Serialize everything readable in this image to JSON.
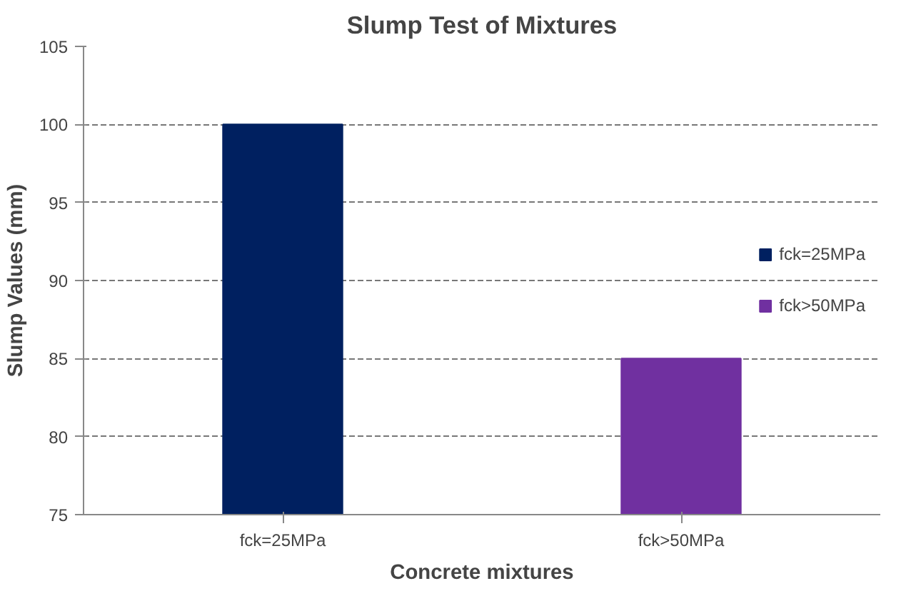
{
  "chart_data": {
    "type": "bar",
    "title": "Slump Test of Mixtures",
    "xlabel": "Concrete mixtures",
    "ylabel": "Slump Values (mm)",
    "categories": [
      "fck=25MPa",
      "fck>50MPa"
    ],
    "series": [
      {
        "name": "fck=25MPa",
        "color": "#002060",
        "values": [
          100,
          null
        ]
      },
      {
        "name": "fck>50MPa",
        "color": "#7030a0",
        "values": [
          null,
          85
        ]
      }
    ],
    "ylim": [
      75,
      105
    ],
    "yticks": [
      75,
      80,
      85,
      90,
      95,
      100,
      105
    ],
    "grid": "y",
    "legend": "right"
  }
}
